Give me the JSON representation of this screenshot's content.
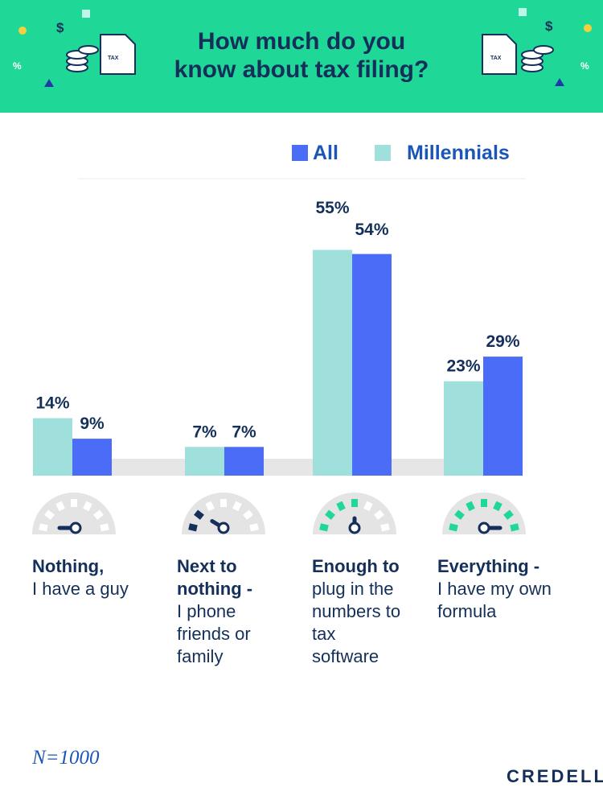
{
  "header": {
    "title_line1": "How much do you",
    "title_line2": "know about tax filing?",
    "doc_label": "TAX"
  },
  "legend": [
    {
      "label": "All",
      "color": "#4a6cf7"
    },
    {
      "label": "Millennials",
      "color": "#9fe0dc"
    }
  ],
  "chart_data": {
    "type": "bar",
    "title": "How much do you know about tax filing?",
    "categories": [
      "Nothing, I have a guy",
      "Next to nothing - I phone friends or family",
      "Enough to plug in the numbers to tax software",
      "Everything - I have my own formula"
    ],
    "series": [
      {
        "name": "Millennials",
        "color": "#9fe0dc",
        "values": [
          14,
          7,
          55,
          23
        ],
        "labels": [
          "14%",
          "7%",
          "55%",
          "23%"
        ]
      },
      {
        "name": "All",
        "color": "#4a6cf7",
        "values": [
          9,
          7,
          54,
          29
        ],
        "labels": [
          "9%",
          "7%",
          "54%",
          "29%"
        ]
      }
    ],
    "ylim": [
      0,
      60
    ],
    "grid": false,
    "legend_position": "top-right",
    "units": "%"
  },
  "categories": [
    {
      "bold": "Nothing,",
      "rest": "I have a guy",
      "gauge_level": 0
    },
    {
      "bold": "Next to nothing -",
      "rest": "I phone friends or family",
      "gauge_level": 0.25
    },
    {
      "bold": "Enough to",
      "rest": "plug in the numbers to tax software",
      "gauge_level": 0.5
    },
    {
      "bold": "Everything -",
      "rest": "I have my own formula",
      "gauge_level": 1
    }
  ],
  "sample": "N=1000",
  "brand": "CREDELLO",
  "colors": {
    "banner": "#1fd796",
    "navy": "#14305a",
    "gauge_gray": "#e4e4e4",
    "gauge_dark": "#14305a",
    "gauge_green": "#1fd796"
  }
}
